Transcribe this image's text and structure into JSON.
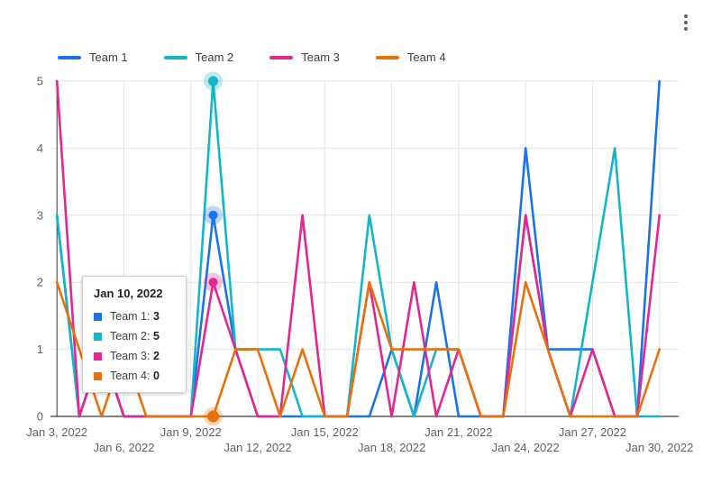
{
  "header": {
    "menu_icon": "kebab-menu"
  },
  "legend": {
    "items": [
      {
        "label": "Team 1",
        "color": "#1A73E8"
      },
      {
        "label": "Team 2",
        "color": "#12B5CB"
      },
      {
        "label": "Team 3",
        "color": "#E52592"
      },
      {
        "label": "Team 4",
        "color": "#E8710A"
      }
    ]
  },
  "y_axis": {
    "tick_labels": [
      "0",
      "1",
      "2",
      "3",
      "4",
      "5"
    ]
  },
  "x_axis": {
    "ticks": [
      {
        "index": 0,
        "label": "Jan 3, 2022",
        "row": 1
      },
      {
        "index": 3,
        "label": "Jan 6, 2022",
        "row": 2
      },
      {
        "index": 6,
        "label": "Jan 9, 2022",
        "row": 1
      },
      {
        "index": 9,
        "label": "Jan 12, 2022",
        "row": 2
      },
      {
        "index": 12,
        "label": "Jan 15, 2022",
        "row": 1
      },
      {
        "index": 15,
        "label": "Jan 18, 2022",
        "row": 2
      },
      {
        "index": 18,
        "label": "Jan 21, 2022",
        "row": 1
      },
      {
        "index": 21,
        "label": "Jan 24, 2022",
        "row": 2
      },
      {
        "index": 24,
        "label": "Jan 27, 2022",
        "row": 1
      },
      {
        "index": 27,
        "label": "Jan 30, 2022",
        "row": 2
      }
    ]
  },
  "tooltip": {
    "title": "Jan 10, 2022",
    "rows": [
      {
        "label": "Team 1:",
        "value": "3",
        "color": "#1A73E8"
      },
      {
        "label": "Team 2:",
        "value": "5",
        "color": "#12B5CB"
      },
      {
        "label": "Team 3:",
        "value": "2",
        "color": "#E52592"
      },
      {
        "label": "Team 4:",
        "value": "0",
        "color": "#E8710A"
      }
    ]
  },
  "chart_data": {
    "type": "line",
    "title": "",
    "xlabel": "",
    "ylabel": "",
    "ylim": [
      0,
      5
    ],
    "grid": true,
    "legend_position": "top",
    "selected_point": {
      "x_label": "Jan 10, 2022",
      "index": 7
    },
    "x": [
      "Jan 3, 2022",
      "Jan 4, 2022",
      "Jan 5, 2022",
      "Jan 6, 2022",
      "Jan 7, 2022",
      "Jan 8, 2022",
      "Jan 9, 2022",
      "Jan 10, 2022",
      "Jan 11, 2022",
      "Jan 12, 2022",
      "Jan 13, 2022",
      "Jan 14, 2022",
      "Jan 15, 2022",
      "Jan 16, 2022",
      "Jan 17, 2022",
      "Jan 18, 2022",
      "Jan 19, 2022",
      "Jan 20, 2022",
      "Jan 21, 2022",
      "Jan 22, 2022",
      "Jan 23, 2022",
      "Jan 24, 2022",
      "Jan 25, 2022",
      "Jan 26, 2022",
      "Jan 27, 2022",
      "Jan 28, 2022",
      "Jan 29, 2022",
      "Jan 30, 2022"
    ],
    "series": [
      {
        "name": "Team 1",
        "color": "#1A73E8",
        "values": [
          3,
          0,
          1,
          0,
          0,
          0,
          0,
          3,
          1,
          0,
          0,
          0,
          0,
          0,
          0,
          1,
          0,
          2,
          0,
          0,
          0,
          4,
          1,
          1,
          1,
          0,
          0,
          5
        ]
      },
      {
        "name": "Team 2",
        "color": "#12B5CB",
        "values": [
          3,
          0,
          1,
          0,
          0,
          0,
          0,
          5,
          1,
          1,
          1,
          0,
          0,
          0,
          3,
          1,
          0,
          1,
          1,
          0,
          0,
          3,
          1,
          0,
          2,
          4,
          0,
          0
        ]
      },
      {
        "name": "Team 3",
        "color": "#E52592",
        "values": [
          5,
          0,
          1,
          0,
          0,
          0,
          0,
          2,
          1,
          0,
          0,
          3,
          0,
          0,
          2,
          0,
          2,
          0,
          1,
          0,
          0,
          3,
          1,
          0,
          1,
          0,
          0,
          3
        ]
      },
      {
        "name": "Team 4",
        "color": "#E8710A",
        "values": [
          2,
          1,
          0,
          1,
          0,
          0,
          0,
          0,
          1,
          1,
          0,
          1,
          0,
          0,
          2,
          1,
          1,
          1,
          1,
          0,
          0,
          2,
          1,
          0,
          0,
          0,
          0,
          1
        ]
      }
    ]
  }
}
